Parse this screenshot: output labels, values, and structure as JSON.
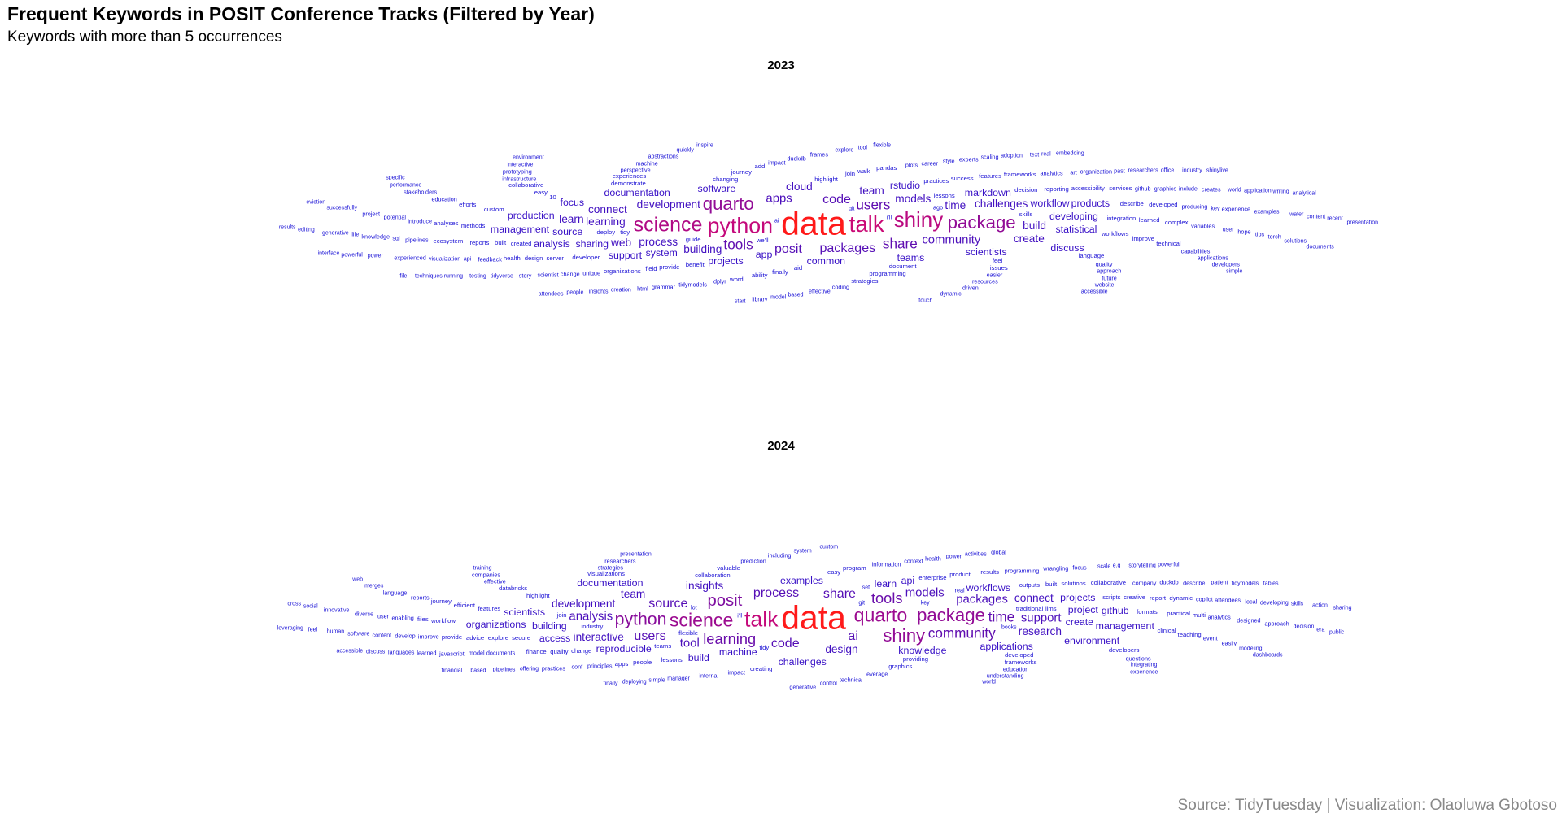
{
  "title": "Frequent Keywords in POSIT Conference Tracks (Filtered by Year)",
  "subtitle": "Keywords with more than 5 occurrences",
  "caption": "Source: TidyTuesday | Visualization: Olaoluwa Gbotoso",
  "colors": {
    "text": "#000000",
    "caption": "#888888",
    "gradient_low": "#1a12d6",
    "gradient_high": "#ff1a1a"
  },
  "chart_data": [
    {
      "type": "wordcloud",
      "facet": "2023",
      "words": [
        [
          "data",
          40
        ],
        [
          "talk",
          23
        ],
        [
          "python",
          22
        ],
        [
          "shiny",
          21
        ],
        [
          "science",
          20
        ],
        [
          "quarto",
          17
        ],
        [
          "package",
          17
        ],
        [
          "users",
          12
        ],
        [
          "share",
          12
        ],
        [
          "tools",
          12
        ],
        [
          "code",
          11
        ],
        [
          "packages",
          11
        ],
        [
          "posit",
          11
        ],
        [
          "apps",
          10
        ],
        [
          "community",
          10
        ],
        [
          "development",
          9
        ],
        [
          "models",
          9
        ],
        [
          "time",
          9
        ],
        [
          "process",
          9
        ],
        [
          "learning",
          9
        ],
        [
          "challenges",
          9
        ],
        [
          "building",
          9
        ],
        [
          "connect",
          9
        ],
        [
          "build",
          9
        ],
        [
          "team",
          9
        ],
        [
          "web",
          9
        ],
        [
          "create",
          9
        ],
        [
          "cloud",
          9
        ],
        [
          "learn",
          9
        ],
        [
          "app",
          8
        ],
        [
          "teams",
          8
        ],
        [
          "common",
          8
        ],
        [
          "system",
          8
        ],
        [
          "software",
          8
        ],
        [
          "scientists",
          8
        ],
        [
          "source",
          8
        ],
        [
          "developing",
          8
        ],
        [
          "documentation",
          8
        ],
        [
          "statistical",
          8
        ],
        [
          "sharing",
          8
        ],
        [
          "projects",
          8
        ],
        [
          "rstudio",
          8
        ],
        [
          "markdown",
          8
        ],
        [
          "workflow",
          8
        ],
        [
          "production",
          8
        ],
        [
          "focus",
          8
        ],
        [
          "management",
          8
        ],
        [
          "support",
          8
        ],
        [
          "analysis",
          8
        ],
        [
          "discuss",
          8
        ],
        [
          "products",
          8
        ]
      ],
      "lower_frequency_words": [
        "we'll",
        "variables",
        "abstractions",
        "guide",
        "easier",
        "tidyverse",
        "tidy",
        "producing",
        "life",
        "document",
        "introduce",
        "successfully",
        "changing",
        "quality",
        "scaling",
        "deploy",
        "perspective",
        "performance",
        "skills",
        "feedback",
        "world",
        "highlight",
        "unique",
        "researchers",
        "integration",
        "education",
        "generative",
        "practices",
        "dplyr",
        "based",
        "workflows",
        "plots",
        "water",
        "lessons",
        "github",
        "creation",
        "benefit",
        "pipelines",
        "testing",
        "decision",
        "analytics",
        "power",
        "aid",
        "infrastructure",
        "interactive",
        "feel",
        "impact",
        "explore",
        "developer",
        "ago",
        "application",
        "10",
        "key",
        "adoption",
        "created",
        "user",
        "developers",
        "demonstrate",
        "change",
        "solutions",
        "finally",
        "capabilities",
        "dynamic",
        "provide",
        "resources",
        "model",
        "reporting",
        "tidymodels",
        "content",
        "custom",
        "potential",
        "website",
        "success",
        "api",
        "insights",
        "methods",
        "graphics",
        "running",
        "join",
        "career",
        "office",
        "describe",
        "experience",
        "powerful",
        "learned",
        "approach",
        "editing",
        "improve",
        "coding",
        "quickly",
        "programming",
        "visualization",
        "tool",
        "built",
        "sql",
        "ai",
        "easy",
        "art",
        "text",
        "server",
        "hope",
        "eviction",
        "field",
        "scientist",
        "specific",
        "journey",
        "machine",
        "writing",
        "language",
        "duckdb",
        "industry",
        "issues",
        "include",
        "library",
        "walk",
        "stakeholders",
        "techniques",
        "accessibility",
        "knowledge",
        "real",
        "ability",
        "style",
        "people",
        "reports",
        "organization",
        "environment",
        "features",
        "project",
        "interface",
        "complex",
        "grammar",
        "results",
        "experiences",
        "prototyping",
        "recent",
        "organizations",
        "examples",
        "documents",
        "design",
        "applications",
        "flexible",
        "analyses",
        "effective",
        "analytical",
        "efforts",
        "tips",
        "simple",
        "developed",
        "story",
        "touch",
        "pandas",
        "experts",
        "start",
        "technical",
        "creates",
        "git",
        "ecosystem",
        "driven",
        "embedding",
        "collaborative",
        "experienced",
        "shinylive",
        "frameworks",
        "frames",
        "inspire",
        "word",
        "torch",
        "accessible",
        "services",
        "future",
        "attendees",
        "health",
        "past",
        "presentation",
        "strategies",
        "html",
        "file",
        "add",
        "i'll"
      ]
    },
    {
      "type": "wordcloud",
      "facet": "2024",
      "words": [
        [
          "data",
          40
        ],
        [
          "talk",
          22
        ],
        [
          "quarto",
          18
        ],
        [
          "science",
          18
        ],
        [
          "package",
          17
        ],
        [
          "shiny",
          17
        ],
        [
          "python",
          16
        ],
        [
          "posit",
          15
        ],
        [
          "tools",
          13
        ],
        [
          "learning",
          13
        ],
        [
          "community",
          12
        ],
        [
          "time",
          12
        ],
        [
          "source",
          11
        ],
        [
          "ai",
          11
        ],
        [
          "share",
          11
        ],
        [
          "code",
          11
        ],
        [
          "process",
          11
        ],
        [
          "users",
          11
        ],
        [
          "models",
          10
        ],
        [
          "packages",
          10
        ],
        [
          "analysis",
          10
        ],
        [
          "support",
          10
        ],
        [
          "tool",
          10
        ],
        [
          "design",
          9
        ],
        [
          "research",
          9
        ],
        [
          "development",
          9
        ],
        [
          "interactive",
          9
        ],
        [
          "insights",
          9
        ],
        [
          "connect",
          9
        ],
        [
          "team",
          9
        ],
        [
          "learn",
          8
        ],
        [
          "knowledge",
          8
        ],
        [
          "machine",
          8
        ],
        [
          "create",
          8
        ],
        [
          "building",
          8
        ],
        [
          "project",
          8
        ],
        [
          "examples",
          8
        ],
        [
          "workflows",
          8
        ],
        [
          "applications",
          8
        ],
        [
          "reproducible",
          8
        ],
        [
          "scientists",
          8
        ],
        [
          "api",
          8
        ],
        [
          "access",
          8
        ],
        [
          "projects",
          8
        ],
        [
          "github",
          8
        ],
        [
          "organizations",
          8
        ],
        [
          "management",
          8
        ],
        [
          "environment",
          8
        ],
        [
          "challenges",
          8
        ],
        [
          "documentation",
          8
        ],
        [
          "build",
          8
        ]
      ],
      "lower_frequency_words": [
        "traditional",
        "documents",
        "key",
        "flexible",
        "analytics",
        "manager",
        "industry",
        "information",
        "offering",
        "teams",
        "improve",
        "books",
        "enterprise",
        "programming",
        "innovative",
        "highlight",
        "enabling",
        "power",
        "tidy",
        "copilot",
        "scale",
        "outputs",
        "impact",
        "patient",
        "providing",
        "principles",
        "integrating",
        "secure",
        "reports",
        "languages",
        "llms",
        "effective",
        "decision",
        "features",
        "company",
        "human",
        "collaboration",
        "event",
        "modeling",
        "scripts",
        "leverage",
        "pipelines",
        "formats",
        "strategies",
        "i'll",
        "change",
        "git",
        "e.g",
        "easy",
        "model",
        "set",
        "developed",
        "prediction",
        "merges",
        "lessons",
        "attendees",
        "training",
        "explore",
        "designed",
        "control",
        "product",
        "develop",
        "simple",
        "built",
        "education",
        "system",
        "creative",
        "user",
        "skills",
        "quality",
        "context",
        "presentation",
        "solutions",
        "wrangling",
        "tidymodels",
        "efficient",
        "duckdb",
        "activities",
        "practical",
        "questions",
        "storytelling",
        "workflow",
        "internal",
        "discuss",
        "databricks",
        "conf",
        "feel",
        "clinical",
        "javascript",
        "social",
        "program",
        "content",
        "action",
        "graphics",
        "real",
        "world",
        "advice",
        "diverse",
        "deploying",
        "report",
        "practices",
        "experience",
        "people",
        "language",
        "based",
        "finance",
        "local",
        "generative",
        "valuable",
        "companies",
        "accessible",
        "visualizations",
        "describe",
        "global",
        "results",
        "easily",
        "tables",
        "creating",
        "approach",
        "leveraging",
        "collaborative",
        "health",
        "era",
        "multi",
        "focus",
        "custom",
        "provide",
        "technical",
        "powerful",
        "developers",
        "software",
        "sharing",
        "dynamic",
        "researchers",
        "cross",
        "journey",
        "understanding",
        "dashboards",
        "teaching",
        "learned",
        "public",
        "files",
        "including",
        "finally",
        "join",
        "developing",
        "financial",
        "frameworks",
        "lot",
        "web",
        "apps"
      ]
    }
  ]
}
